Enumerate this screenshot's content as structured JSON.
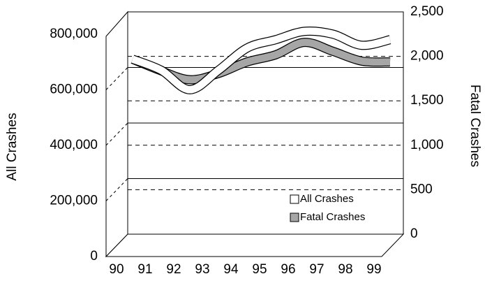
{
  "chart_data": {
    "type": "line",
    "y_label": "All Crashes",
    "y2_label": "Fatal Crashes",
    "categories": [
      "90",
      "91",
      "92",
      "93",
      "94",
      "95",
      "96",
      "97",
      "98",
      "99"
    ],
    "series": [
      {
        "name": "All Crashes",
        "color": "#ffffff",
        "values": [
          650000,
          610000,
          540000,
          610000,
          690000,
          720000,
          750000,
          740000,
          700000,
          720000
        ]
      },
      {
        "name": "Fatal Crashes",
        "color": "#a6a6a6",
        "axis": "y2",
        "values": [
          2030,
          1900,
          1800,
          1870,
          2000,
          2080,
          2220,
          2120,
          2010,
          2000
        ]
      }
    ],
    "ylim": [
      0,
      800000
    ],
    "yticks": [
      0,
      {
        "value": 200000,
        "label": "200,000"
      },
      {
        "value": 400000,
        "label": "400,000"
      },
      {
        "value": 600000,
        "label": "600,000"
      },
      {
        "value": 800000,
        "label": "800,000"
      }
    ],
    "y2lim": [
      0,
      2500
    ],
    "y2ticks": [
      0,
      500,
      {
        "value": 1000,
        "label": "1,000"
      },
      {
        "value": 1500,
        "label": "1,500"
      },
      {
        "value": 2000,
        "label": "2,000"
      },
      {
        "value": 2500,
        "label": "2,500"
      }
    ],
    "legend": "lower right"
  }
}
